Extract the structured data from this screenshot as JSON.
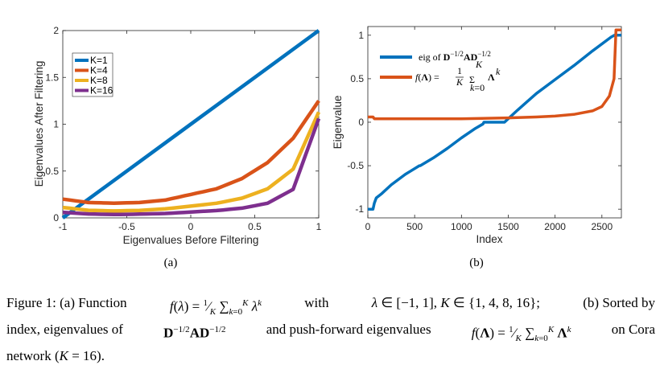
{
  "chart_data": [
    {
      "type": "line",
      "xlabel": "Eigenvalues Before Filtering",
      "ylabel": "Eigenvalues After Filtering",
      "xlim": [
        -1,
        1
      ],
      "ylim": [
        0,
        2
      ],
      "xticks": [
        "-1",
        "-0.5",
        "0",
        "0.5",
        "1"
      ],
      "yticks": [
        "0",
        "0.5",
        "1",
        "1.5",
        "2"
      ],
      "sublabel": "(a)",
      "grid": false,
      "legend_position": "top-left",
      "series": [
        {
          "name": "K=1",
          "color": "#0072bd",
          "x": [
            -1,
            -0.5,
            0,
            0.5,
            1
          ],
          "y": [
            0,
            0.5,
            1,
            1.5,
            2
          ]
        },
        {
          "name": "K=4",
          "color": "#d95319",
          "x": [
            -1,
            -0.8,
            -0.6,
            -0.4,
            -0.2,
            0,
            0.2,
            0.4,
            0.6,
            0.8,
            1
          ],
          "y": [
            0.2,
            0.164,
            0.157,
            0.164,
            0.19,
            0.25,
            0.31,
            0.42,
            0.59,
            0.85,
            1.25
          ]
        },
        {
          "name": "K=8",
          "color": "#edb120",
          "x": [
            -1,
            -0.8,
            -0.6,
            -0.4,
            -0.2,
            0,
            0.2,
            0.4,
            0.6,
            0.8,
            1
          ],
          "y": [
            0.111,
            0.081,
            0.074,
            0.08,
            0.096,
            0.125,
            0.156,
            0.21,
            0.31,
            0.52,
            1.13
          ]
        },
        {
          "name": "K=16",
          "color": "#7e2f8e",
          "x": [
            -1,
            -0.8,
            -0.6,
            -0.4,
            -0.2,
            0,
            0.2,
            0.4,
            0.6,
            0.8,
            1
          ],
          "y": [
            0.059,
            0.042,
            0.036,
            0.04,
            0.047,
            0.0625,
            0.078,
            0.104,
            0.156,
            0.305,
            1.06
          ]
        }
      ]
    },
    {
      "type": "line",
      "xlabel": "Index",
      "ylabel": "Eigenvalue",
      "xlim": [
        0,
        2708
      ],
      "ylim": [
        -1.1,
        1.1
      ],
      "xticks": [
        "0",
        "500",
        "1000",
        "1500",
        "2000",
        "2500"
      ],
      "yticks": [
        "-1",
        "-0.5",
        "0",
        "0.5",
        "1"
      ],
      "sublabel": "(b)",
      "grid": false,
      "legend_position": "top-left",
      "series": [
        {
          "name": "eig of D^{-1/2}AD^{-1/2}",
          "color": "#0072bd",
          "x": [
            0,
            55,
            70,
            90,
            150,
            250,
            400,
            550,
            560,
            700,
            850,
            1000,
            1150,
            1230,
            1240,
            1450,
            1460,
            1600,
            1800,
            2000,
            2200,
            2400,
            2600,
            2635,
            2650,
            2708
          ],
          "y": [
            -1.0,
            -1.0,
            -0.93,
            -0.87,
            -0.82,
            -0.72,
            -0.6,
            -0.5,
            -0.5,
            -0.41,
            -0.3,
            -0.18,
            -0.07,
            -0.02,
            0.0,
            0.0,
            0.0,
            0.14,
            0.33,
            0.49,
            0.65,
            0.82,
            0.98,
            1.0,
            1.0,
            1.0
          ]
        },
        {
          "name": "f(Λ) = (1/K) Σ_{k=0}^{K} Λ^k",
          "color": "#d95319",
          "x": [
            0,
            55,
            70,
            500,
            1000,
            1500,
            1800,
            2000,
            2200,
            2400,
            2500,
            2580,
            2630,
            2650,
            2708
          ],
          "y": [
            0.06,
            0.06,
            0.04,
            0.04,
            0.04,
            0.05,
            0.06,
            0.07,
            0.09,
            0.13,
            0.18,
            0.3,
            0.5,
            1.06,
            1.06
          ]
        }
      ]
    }
  ],
  "caption": {
    "l1_a": "Figure 1: (a) Function",
    "l1_b": "with",
    "l1_c": "(b) Sorted by",
    "l2_a": "index, eigenvalues of",
    "l2_b": "and push-forward eigenvalues",
    "l2_c": "on Cora",
    "l3": "network ("
  }
}
